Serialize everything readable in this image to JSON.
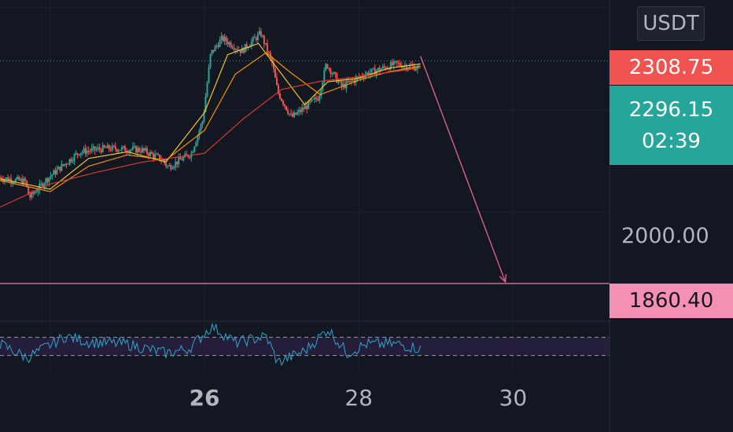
{
  "symbol_currency": "USDT",
  "price_tags": {
    "high": "2308.75",
    "last": "2296.15",
    "countdown": "02:39",
    "target": "1860.40"
  },
  "price_axis_label": "2000.00",
  "colors": {
    "background": "#131722",
    "bull": "#26a69a",
    "bear": "#f05350",
    "target_line": "#f58fb3",
    "rsi_line": "#2fa4c9",
    "rsi_band": "#2a2141",
    "ma_slow": "#e53935",
    "ma_mid": "#ff9800",
    "ma_fast": "#ffca28"
  },
  "chart_data": {
    "type": "candlestick",
    "y_unit": "USDT",
    "x_tick_labels": [
      {
        "label": "26",
        "day": 26,
        "bold": true
      },
      {
        "label": "28",
        "day": 28,
        "bold": false
      },
      {
        "label": "30",
        "day": 30,
        "bold": false
      }
    ],
    "x_range_days": [
      23.35,
      31.25
    ],
    "y_range": [
      1785,
      2415
    ],
    "price_path": [
      {
        "day": 23.35,
        "price": 2068
      },
      {
        "day": 23.7,
        "price": 2060
      },
      {
        "day": 23.75,
        "price": 2028
      },
      {
        "day": 24.0,
        "price": 2068
      },
      {
        "day": 24.4,
        "price": 2118
      },
      {
        "day": 24.75,
        "price": 2125
      },
      {
        "day": 25.2,
        "price": 2122
      },
      {
        "day": 25.45,
        "price": 2105
      },
      {
        "day": 25.55,
        "price": 2088
      },
      {
        "day": 25.85,
        "price": 2115
      },
      {
        "day": 26.0,
        "price": 2180
      },
      {
        "day": 26.1,
        "price": 2310
      },
      {
        "day": 26.25,
        "price": 2340
      },
      {
        "day": 26.5,
        "price": 2315
      },
      {
        "day": 26.75,
        "price": 2350
      },
      {
        "day": 26.9,
        "price": 2290
      },
      {
        "day": 26.97,
        "price": 2235
      },
      {
        "day": 27.15,
        "price": 2185
      },
      {
        "day": 27.5,
        "price": 2225
      },
      {
        "day": 27.6,
        "price": 2290
      },
      {
        "day": 27.8,
        "price": 2245
      },
      {
        "day": 28.1,
        "price": 2270
      },
      {
        "day": 28.5,
        "price": 2290
      },
      {
        "day": 28.8,
        "price": 2282
      }
    ],
    "moving_averages": [
      {
        "color": "#ffca28",
        "points": [
          [
            23.35,
            2065
          ],
          [
            24.0,
            2045
          ],
          [
            24.5,
            2105
          ],
          [
            25.0,
            2118
          ],
          [
            25.5,
            2098
          ],
          [
            26.0,
            2195
          ],
          [
            26.3,
            2308
          ],
          [
            26.7,
            2330
          ],
          [
            27.0,
            2270
          ],
          [
            27.3,
            2210
          ],
          [
            27.6,
            2255
          ],
          [
            28.0,
            2262
          ],
          [
            28.4,
            2282
          ],
          [
            28.8,
            2290
          ]
        ]
      },
      {
        "color": "#ff9800",
        "points": [
          [
            23.35,
            2062
          ],
          [
            24.0,
            2040
          ],
          [
            24.5,
            2090
          ],
          [
            25.0,
            2112
          ],
          [
            25.5,
            2102
          ],
          [
            26.0,
            2160
          ],
          [
            26.4,
            2270
          ],
          [
            26.8,
            2312
          ],
          [
            27.1,
            2275
          ],
          [
            27.5,
            2230
          ],
          [
            28.0,
            2258
          ],
          [
            28.4,
            2275
          ],
          [
            28.8,
            2285
          ]
        ]
      },
      {
        "color": "#e53935",
        "points": [
          [
            23.35,
            2010
          ],
          [
            24.0,
            2055
          ],
          [
            24.6,
            2078
          ],
          [
            25.2,
            2098
          ],
          [
            26.0,
            2115
          ],
          [
            26.5,
            2182
          ],
          [
            27.0,
            2240
          ],
          [
            27.5,
            2256
          ],
          [
            28.0,
            2265
          ],
          [
            28.5,
            2276
          ],
          [
            28.8,
            2282
          ]
        ]
      }
    ],
    "current_price": 2296.15,
    "last_high_tag": 2308.75,
    "target_price": 1860.4,
    "projection": {
      "from": {
        "day": 28.8,
        "price": 2305
      },
      "to": {
        "day": 29.9,
        "price": 1860.4
      }
    },
    "rsi": {
      "upper_band": 70,
      "lower_band": 30,
      "path": [
        {
          "day": 23.35,
          "v": 55
        },
        {
          "day": 23.7,
          "v": 25
        },
        {
          "day": 24.2,
          "v": 72
        },
        {
          "day": 24.5,
          "v": 60
        },
        {
          "day": 25.0,
          "v": 55
        },
        {
          "day": 25.5,
          "v": 35
        },
        {
          "day": 25.8,
          "v": 45
        },
        {
          "day": 26.1,
          "v": 95
        },
        {
          "day": 26.4,
          "v": 58
        },
        {
          "day": 26.8,
          "v": 72
        },
        {
          "day": 26.95,
          "v": 15
        },
        {
          "day": 27.3,
          "v": 40
        },
        {
          "day": 27.6,
          "v": 88
        },
        {
          "day": 27.85,
          "v": 35
        },
        {
          "day": 28.1,
          "v": 55
        },
        {
          "day": 28.5,
          "v": 55
        },
        {
          "day": 28.8,
          "v": 45
        }
      ]
    }
  }
}
